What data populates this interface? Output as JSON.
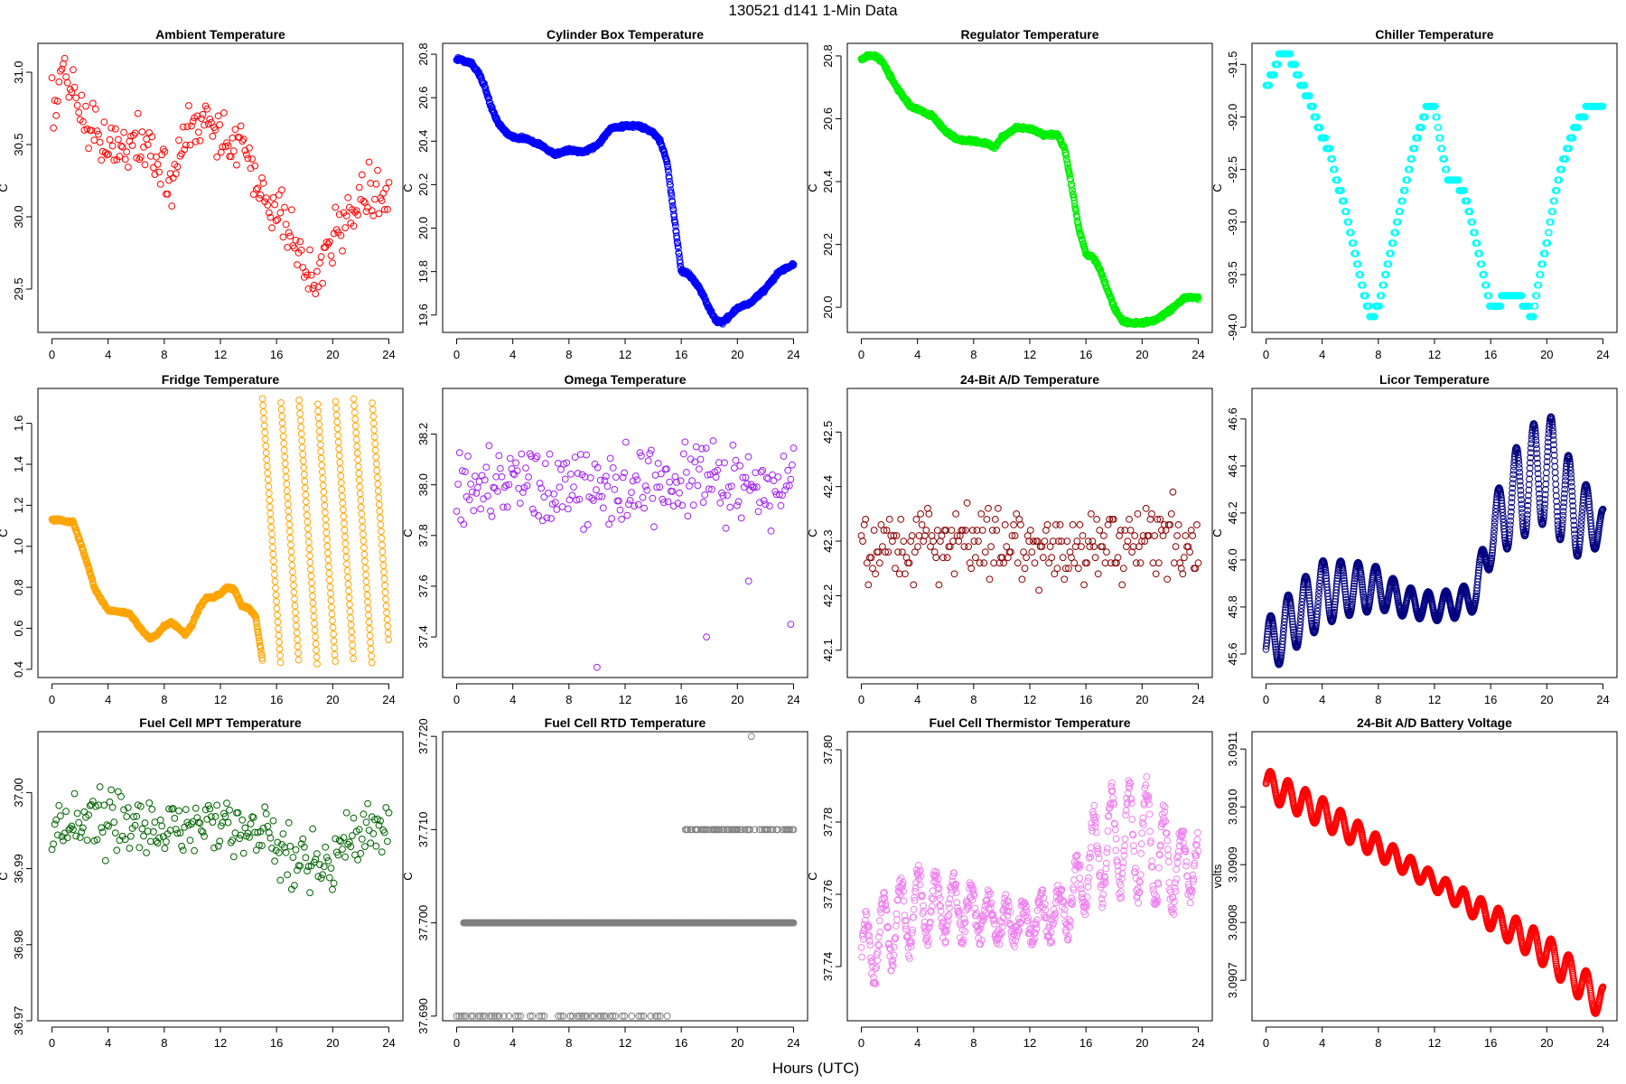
{
  "figure": {
    "title": "130521    d141    1-Min Data",
    "xlabel": "Hours (UTC)"
  },
  "chart_data": [
    {
      "type": "scatter",
      "title": "Ambient Temperature",
      "ylabel": "C",
      "color": "#ff0000",
      "xlim": [
        -1,
        25
      ],
      "ylim": [
        29.2,
        31.2
      ],
      "xticks": [
        0,
        4,
        8,
        12,
        16,
        20,
        24
      ],
      "yticks": [
        29.5,
        30.0,
        30.5,
        31.0
      ],
      "ytick_labels": [
        "29.5",
        "30.0",
        "30.5",
        "31.0"
      ],
      "series": {
        "x": [
          0,
          0.5,
          1,
          1.5,
          2,
          2.5,
          3,
          3.5,
          4,
          4.5,
          5,
          5.5,
          6,
          6.5,
          7,
          7.5,
          8,
          8.5,
          9,
          9.5,
          10,
          10.5,
          11,
          11.5,
          12,
          12.5,
          13,
          13.5,
          14,
          14.5,
          15,
          15.5,
          16,
          16.5,
          17,
          17.5,
          18,
          18.5,
          19,
          19.5,
          20,
          20.5,
          21,
          21.5,
          22,
          22.5,
          23,
          23.5,
          24
        ],
        "y": [
          30.75,
          30.9,
          30.95,
          30.85,
          30.75,
          30.7,
          30.6,
          30.55,
          30.5,
          30.45,
          30.5,
          30.55,
          30.5,
          30.45,
          30.4,
          30.4,
          30.35,
          30.3,
          30.45,
          30.55,
          30.65,
          30.6,
          30.7,
          30.6,
          30.55,
          30.5,
          30.55,
          30.55,
          30.35,
          30.3,
          30.15,
          30.05,
          30.0,
          30.0,
          29.85,
          29.75,
          29.65,
          29.55,
          29.6,
          29.75,
          29.85,
          29.95,
          30.0,
          30.05,
          30.15,
          30.25,
          30.2,
          30.1,
          30.1
        ]
      },
      "spread": 0.28,
      "density": 1,
      "marker": "circle",
      "seed": 1
    },
    {
      "type": "scatter",
      "title": "Cylinder Box Temperature",
      "ylabel": "C",
      "color": "#0000ff",
      "xlim": [
        -1,
        25
      ],
      "ylim": [
        19.52,
        20.85
      ],
      "xticks": [
        0,
        4,
        8,
        12,
        16,
        20,
        24
      ],
      "yticks": [
        19.6,
        19.8,
        20.0,
        20.2,
        20.4,
        20.6,
        20.8
      ],
      "ytick_labels": [
        "19.6",
        "19.8",
        "20.0",
        "20.2",
        "20.4",
        "20.6",
        "20.8"
      ],
      "series": {
        "x": [
          0,
          0.5,
          1,
          1.5,
          2,
          2.5,
          3,
          3.5,
          4,
          5,
          6,
          7,
          8,
          9,
          10,
          11,
          12,
          13,
          14,
          14.5,
          15,
          15.5,
          16,
          16.5,
          17,
          17.5,
          18,
          18.5,
          19,
          19.5,
          20,
          21,
          22,
          23,
          24
        ],
        "y": [
          20.78,
          20.77,
          20.76,
          20.72,
          20.65,
          20.55,
          20.48,
          20.44,
          20.42,
          20.41,
          20.38,
          20.34,
          20.36,
          20.35,
          20.38,
          20.46,
          20.47,
          20.47,
          20.44,
          20.4,
          20.3,
          20.05,
          19.8,
          19.79,
          19.75,
          19.7,
          19.63,
          19.57,
          19.57,
          19.6,
          19.63,
          19.66,
          19.72,
          19.8,
          19.83
        ]
      },
      "spread": 0.012,
      "density": 4,
      "marker": "circle",
      "seed": 2
    },
    {
      "type": "scatter",
      "title": "Regulator Temperature",
      "ylabel": "C",
      "color": "#00ee00",
      "xlim": [
        -1,
        25
      ],
      "ylim": [
        19.92,
        20.84
      ],
      "xticks": [
        0,
        4,
        8,
        12,
        16,
        20,
        24
      ],
      "yticks": [
        20.0,
        20.2,
        20.4,
        20.6,
        20.8
      ],
      "ytick_labels": [
        "20.0",
        "20.2",
        "20.4",
        "20.6",
        "20.8"
      ],
      "series": {
        "x": [
          0,
          0.5,
          1,
          1.5,
          2,
          2.5,
          3,
          3.5,
          4,
          5,
          6,
          7,
          8,
          9,
          9.5,
          10,
          11,
          12,
          13,
          14,
          14.5,
          15,
          15.5,
          16,
          16.5,
          17,
          17.5,
          18,
          18.5,
          19,
          19.5,
          20,
          21,
          22,
          23,
          24
        ],
        "y": [
          20.79,
          20.8,
          20.8,
          20.78,
          20.74,
          20.7,
          20.67,
          20.64,
          20.63,
          20.61,
          20.56,
          20.53,
          20.53,
          20.52,
          20.51,
          20.54,
          20.57,
          20.57,
          20.55,
          20.55,
          20.5,
          20.38,
          20.25,
          20.17,
          20.16,
          20.12,
          20.06,
          20.0,
          19.96,
          19.95,
          19.95,
          19.95,
          19.96,
          19.99,
          20.03,
          20.03
        ]
      },
      "spread": 0.008,
      "density": 4,
      "marker": "circle",
      "seed": 3
    },
    {
      "type": "scatter",
      "title": "Chiller Temperature",
      "ylabel": "C",
      "color": "#00ffff",
      "xlim": [
        -1,
        25
      ],
      "ylim": [
        -94.05,
        -91.3
      ],
      "xticks": [
        0,
        4,
        8,
        12,
        16,
        20,
        24
      ],
      "yticks": [
        -94.0,
        -93.5,
        -93.0,
        -92.5,
        -92.0,
        -91.5
      ],
      "ytick_labels": [
        "-94.0",
        "-93.5",
        "-93.0",
        "-92.5",
        "-92.0",
        "-91.5"
      ],
      "series": {
        "x": [
          0,
          0.5,
          1,
          1.5,
          2,
          2.5,
          3,
          3.5,
          4,
          4.5,
          5,
          5.5,
          6,
          6.5,
          7,
          7.5,
          8,
          8.5,
          9,
          9.5,
          10,
          10.5,
          11,
          11.5,
          12,
          12.5,
          13,
          13.5,
          14,
          14.5,
          15,
          15.5,
          16,
          16.5,
          17,
          17.5,
          18,
          18.5,
          19,
          19.5,
          20,
          20.5,
          21,
          21.5,
          22,
          22.5,
          23,
          23.5,
          24
        ],
        "y": [
          -91.7,
          -91.6,
          -91.4,
          -91.4,
          -91.5,
          -91.7,
          -91.8,
          -92.0,
          -92.2,
          -92.3,
          -92.6,
          -92.8,
          -93.1,
          -93.4,
          -93.7,
          -93.9,
          -93.8,
          -93.5,
          -93.2,
          -92.9,
          -92.6,
          -92.3,
          -92.1,
          -91.9,
          -91.9,
          -92.3,
          -92.6,
          -92.6,
          -92.7,
          -92.9,
          -93.2,
          -93.5,
          -93.8,
          -93.8,
          -93.7,
          -93.7,
          -93.7,
          -93.8,
          -93.9,
          -93.5,
          -93.2,
          -92.8,
          -92.5,
          -92.3,
          -92.1,
          -92.0,
          -91.9,
          -91.9,
          -91.9
        ]
      },
      "spread": 0.0,
      "quantize": 0.1,
      "density": 3,
      "marker": "circle",
      "seed": 4
    },
    {
      "type": "scatter",
      "title": "Fridge Temperature",
      "ylabel": "C",
      "color": "#ffa500",
      "xlim": [
        -1,
        25
      ],
      "ylim": [
        0.36,
        1.77
      ],
      "xticks": [
        0,
        4,
        8,
        12,
        16,
        20,
        24
      ],
      "yticks": [
        0.4,
        0.6,
        0.8,
        1.0,
        1.2,
        1.4,
        1.6
      ],
      "ytick_labels": [
        "0.4",
        "0.6",
        "0.8",
        "1.0",
        "1.2",
        "1.4",
        "1.6"
      ],
      "series": {
        "x": [
          0,
          0.5,
          1,
          1.5,
          2,
          2.5,
          3,
          3.5,
          4,
          4.5,
          5,
          5.5,
          6,
          6.5,
          7,
          7.5,
          8,
          8.5,
          9,
          9.5,
          10,
          10.5,
          11,
          11.5,
          12,
          12.5,
          13,
          13.5,
          14,
          14.5,
          15
        ],
        "y": [
          1.13,
          1.13,
          1.12,
          1.12,
          1.02,
          0.92,
          0.8,
          0.74,
          0.69,
          0.68,
          0.68,
          0.67,
          0.63,
          0.58,
          0.55,
          0.57,
          0.61,
          0.63,
          0.6,
          0.57,
          0.62,
          0.7,
          0.75,
          0.75,
          0.77,
          0.8,
          0.79,
          0.71,
          0.7,
          0.66,
          0.44
        ]
      },
      "spread": 0.01,
      "density": 4,
      "marker": "circle",
      "seed": 5,
      "cycling": {
        "x_start": 15,
        "x_end": 24,
        "y_low": 0.42,
        "y_high": 1.72
      }
    },
    {
      "type": "scatter",
      "title": "Omega Temperature",
      "ylabel": "C",
      "color": "#a020f0",
      "xlim": [
        -1,
        25
      ],
      "ylim": [
        37.24,
        38.38
      ],
      "xticks": [
        0,
        4,
        8,
        12,
        16,
        20,
        24
      ],
      "yticks": [
        37.4,
        37.6,
        37.8,
        38.0,
        38.2
      ],
      "ytick_labels": [
        "37.4",
        "37.6",
        "37.8",
        "38.0",
        "38.2"
      ],
      "series": {
        "x": [
          0,
          4,
          8,
          10,
          12,
          14,
          15,
          16,
          18,
          20,
          22,
          24
        ],
        "y": [
          38.0,
          38.0,
          38.0,
          38.0,
          38.0,
          37.98,
          37.95,
          38.0,
          38.0,
          37.98,
          38.0,
          38.0
        ]
      },
      "spread": 0.22,
      "density": 1,
      "marker": "circle",
      "seed": 6,
      "outliers": [
        [
          10,
          37.28
        ],
        [
          17.8,
          37.4
        ],
        [
          20.8,
          37.62
        ],
        [
          23.8,
          37.45
        ]
      ]
    },
    {
      "type": "scatter",
      "title": "24-Bit A/D Temperature",
      "ylabel": "C",
      "color": "#8b0000",
      "xlim": [
        -1,
        25
      ],
      "ylim": [
        42.05,
        42.58
      ],
      "xticks": [
        0,
        4,
        8,
        12,
        16,
        20,
        24
      ],
      "yticks": [
        42.1,
        42.2,
        42.3,
        42.4,
        42.5
      ],
      "ytick_labels": [
        "42.1",
        "42.2",
        "42.3",
        "42.4",
        "42.5"
      ],
      "series": {
        "x": [
          0,
          4,
          8,
          12,
          16,
          20,
          24
        ],
        "y": [
          42.29,
          42.3,
          42.29,
          42.29,
          42.28,
          42.3,
          42.3
        ]
      },
      "spread": 0.1,
      "quantize": 0.01,
      "density": 1,
      "marker": "circle",
      "seed": 7
    },
    {
      "type": "scatter",
      "title": "Licor Temperature",
      "ylabel": "C",
      "color": "#000080",
      "xlim": [
        -1,
        25
      ],
      "ylim": [
        45.5,
        46.73
      ],
      "xticks": [
        0,
        4,
        8,
        12,
        16,
        20,
        24
      ],
      "yticks": [
        45.6,
        45.8,
        46.0,
        46.2,
        46.4,
        46.6
      ],
      "ytick_labels": [
        "45.6",
        "45.8",
        "46.0",
        "46.2",
        "46.4",
        "46.6"
      ],
      "series": {
        "x": [
          0,
          2,
          4,
          6,
          8,
          10,
          12,
          14,
          15,
          16,
          18,
          20,
          22,
          24
        ],
        "y": [
          45.62,
          45.75,
          45.86,
          45.88,
          45.88,
          45.82,
          45.8,
          45.82,
          45.86,
          46.1,
          46.3,
          46.4,
          46.2,
          46.14
        ]
      },
      "spread": 0.0,
      "osc": {
        "period": 1.25,
        "amp": [
          0.12,
          0.13,
          0.14,
          0.12,
          0.1,
          0.07,
          0.06,
          0.06,
          0.07,
          0.15,
          0.22,
          0.24,
          0.18,
          0.08
        ]
      },
      "density": 5,
      "marker": "circle",
      "seed": 8
    },
    {
      "type": "scatter",
      "title": "Fuel Cell MPT Temperature",
      "ylabel": "C",
      "color": "#006400",
      "xlim": [
        -1,
        25
      ],
      "ylim": [
        36.97,
        37.008
      ],
      "xticks": [
        0,
        4,
        8,
        12,
        16,
        20,
        24
      ],
      "yticks": [
        36.97,
        36.98,
        36.99,
        37.0
      ],
      "ytick_labels": [
        "36.97",
        "36.98",
        "36.99",
        "37.00"
      ],
      "series": {
        "x": [
          0,
          4,
          8,
          12,
          14,
          16,
          18,
          20,
          22,
          24
        ],
        "y": [
          36.995,
          36.996,
          36.995,
          36.995,
          36.995,
          36.992,
          36.991,
          36.991,
          36.995,
          36.996
        ]
      },
      "spread": 0.006,
      "density": 1,
      "marker": "circle",
      "seed": 9
    },
    {
      "type": "scatter",
      "title": "Fuel Cell RTD Temperature",
      "ylabel": "C",
      "color": "#808080",
      "xlim": [
        -1,
        25
      ],
      "ylim": [
        37.6895,
        37.7205
      ],
      "xticks": [
        0,
        4,
        8,
        12,
        16,
        20,
        24
      ],
      "yticks": [
        37.69,
        37.7,
        37.71,
        37.72
      ],
      "ytick_labels": [
        "37.690",
        "37.700",
        "37.710",
        "37.720"
      ],
      "series": {
        "x": [
          0,
          24
        ],
        "y": [
          37.7,
          37.7
        ]
      },
      "spread": 0.0,
      "density": 4,
      "marker": "circle",
      "seed": 10,
      "levels": [
        {
          "y": 37.7,
          "x0": 0.5,
          "x1": 24,
          "n": 720
        },
        {
          "y": 37.69,
          "x0": 0,
          "x1": 15,
          "n": 90
        },
        {
          "y": 37.71,
          "x0": 16.3,
          "x1": 24,
          "n": 90
        }
      ],
      "outliers": [
        [
          21,
          37.72
        ]
      ]
    },
    {
      "type": "scatter",
      "title": "Fuel Cell Thermistor Temperature",
      "ylabel": "C",
      "color": "#ee82ee",
      "xlim": [
        -1,
        25
      ],
      "ylim": [
        37.725,
        37.805
      ],
      "xticks": [
        0,
        4,
        8,
        12,
        16,
        20,
        24
      ],
      "yticks": [
        37.74,
        37.76,
        37.78,
        37.8
      ],
      "ytick_labels": [
        "37.74",
        "37.76",
        "37.78",
        "37.80"
      ],
      "series": {
        "x": [
          0,
          2,
          4,
          6,
          8,
          10,
          12,
          14,
          15,
          16,
          18,
          20,
          22,
          24
        ],
        "y": [
          37.743,
          37.75,
          37.757,
          37.757,
          37.755,
          37.752,
          37.753,
          37.755,
          37.758,
          37.768,
          37.775,
          37.775,
          37.768,
          37.768
        ]
      },
      "spread": 0.0,
      "osc": {
        "period": 1.25,
        "amp": [
          0.009,
          0.01,
          0.01,
          0.008,
          0.007,
          0.005,
          0.005,
          0.005,
          0.007,
          0.012,
          0.015,
          0.016,
          0.012,
          0.007
        ]
      },
      "noise": 0.003,
      "density": 3,
      "marker": "circle",
      "seed": 11
    },
    {
      "type": "scatter",
      "title": "24-Bit A/D Battery Voltage",
      "ylabel": "volts",
      "color": "#ff0000",
      "xlim": [
        -1,
        25
      ],
      "ylim": [
        3.09063,
        3.09113
      ],
      "xticks": [
        0,
        4,
        8,
        12,
        16,
        20,
        24
      ],
      "yticks": [
        3.0907,
        3.0908,
        3.0909,
        3.091,
        3.0911
      ],
      "ytick_labels": [
        "3.0907",
        "3.0908",
        "3.0909",
        "3.0910",
        "3.0911"
      ],
      "series": {
        "x": [
          0,
          4,
          8,
          12,
          16,
          20,
          24
        ],
        "y": [
          3.09104,
          3.09099,
          3.09093,
          3.09087,
          3.09081,
          3.09075,
          3.09066
        ]
      },
      "spread": 0.0,
      "osc": {
        "period": 1.25,
        "amp": [
          2.5e-05,
          2.5e-05,
          2e-05,
          1.5e-05,
          2.2e-05,
          2.8e-05,
          3e-05
        ]
      },
      "density": 5,
      "marker": "circle",
      "seed": 12
    }
  ]
}
